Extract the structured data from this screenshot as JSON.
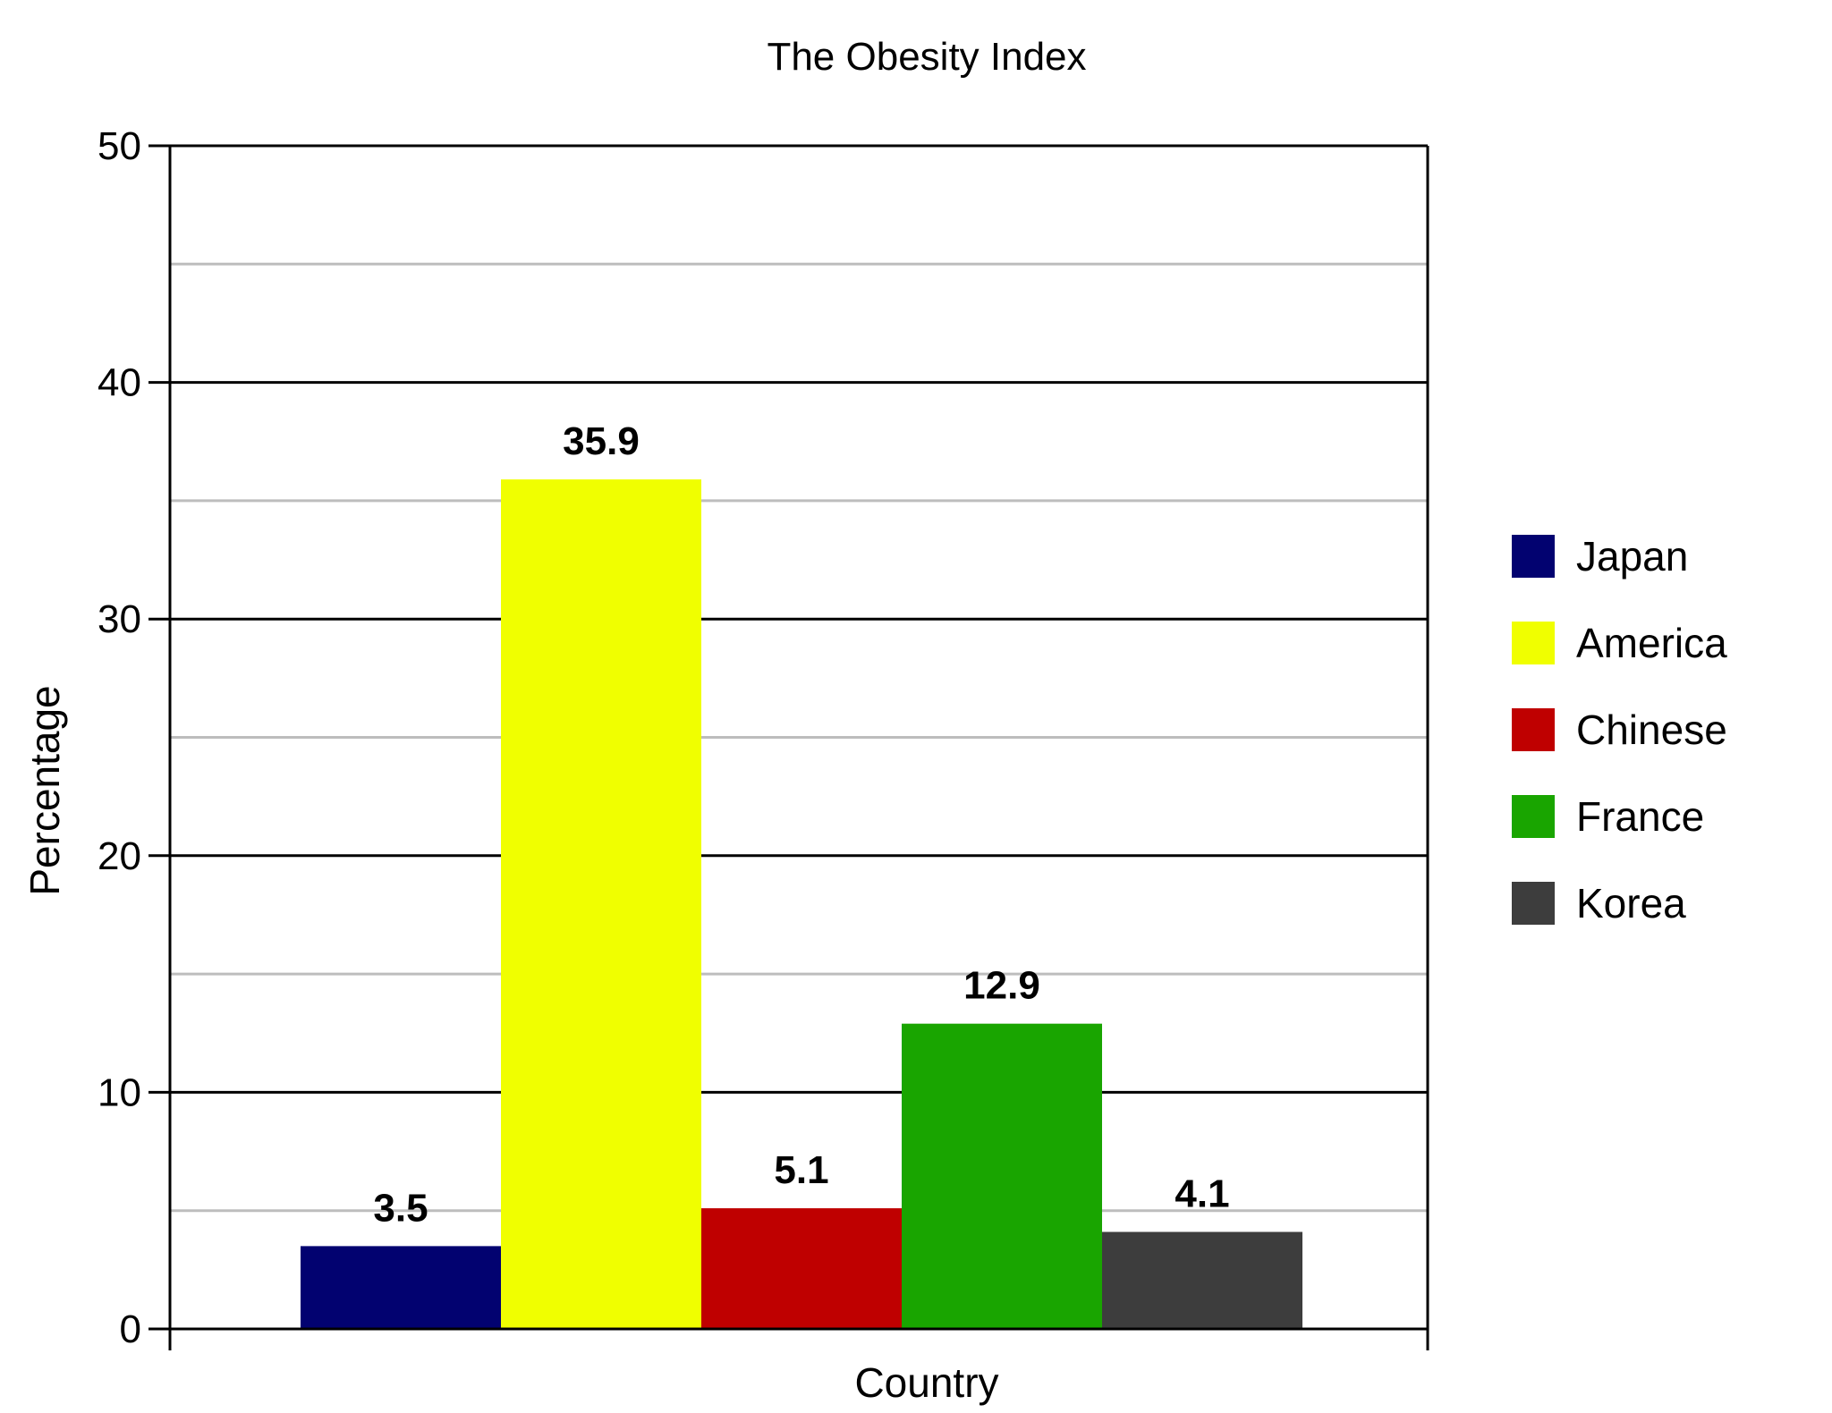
{
  "chart_data": {
    "type": "bar",
    "title": "The Obesity  Index",
    "xlabel": "Country",
    "ylabel": "Percentage",
    "ylim": [
      0,
      50
    ],
    "major_ticks": [
      0,
      10,
      20,
      30,
      40,
      50
    ],
    "minor_ticks": [
      5,
      15,
      25,
      35,
      45
    ],
    "grid": true,
    "legend_position": "right",
    "series": [
      {
        "name": "Japan",
        "value": 3.5,
        "value_label": "3.5",
        "color": "#020270"
      },
      {
        "name": "America",
        "value": 35.9,
        "value_label": "35.9",
        "color": "#f0ff00"
      },
      {
        "name": "Chinese",
        "value": 5.1,
        "value_label": "5.1",
        "color": "#bf0000"
      },
      {
        "name": "France",
        "value": 12.9,
        "value_label": "12.9",
        "color": "#19a500"
      },
      {
        "name": "Korea",
        "value": 4.1,
        "value_label": "4.1",
        "color": "#3d3d3d"
      }
    ]
  }
}
